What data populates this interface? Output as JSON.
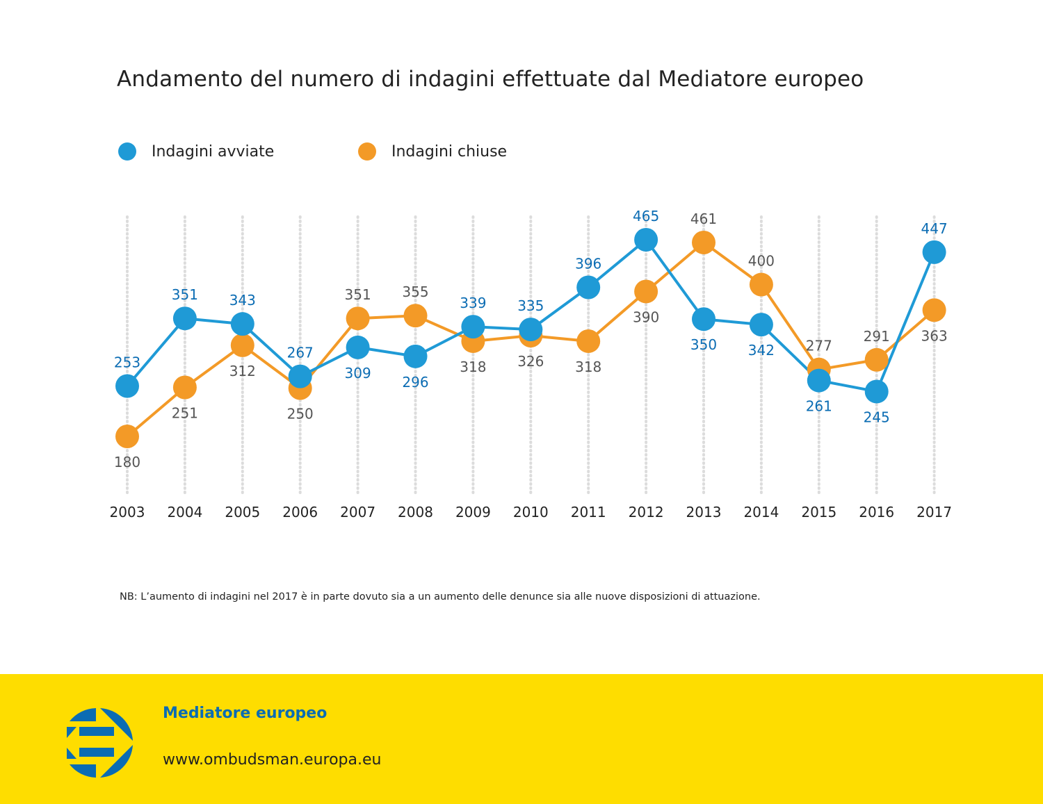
{
  "chart_data": {
    "type": "line",
    "title": "Andamento del numero di indagini effettuate dal Mediatore europeo",
    "xlabel": "",
    "ylabel": "",
    "categories": [
      "2003",
      "2004",
      "2005",
      "2006",
      "2007",
      "2008",
      "2009",
      "2010",
      "2011",
      "2012",
      "2013",
      "2014",
      "2015",
      "2016",
      "2017"
    ],
    "series": [
      {
        "name": "Indagini avviate",
        "color": "#1f9ad6",
        "label_color": "#0b6cb3",
        "values": [
          253,
          351,
          343,
          267,
          309,
          296,
          339,
          335,
          396,
          465,
          350,
          342,
          261,
          245,
          447
        ],
        "label_pos": [
          "above",
          "above",
          "above",
          "above",
          "below",
          "below",
          "above",
          "above",
          "above",
          "above",
          "below",
          "below",
          "below",
          "below",
          "above"
        ]
      },
      {
        "name": "Indagini chiuse",
        "color": "#f39a27",
        "label_color": "#555555",
        "values": [
          180,
          251,
          312,
          250,
          351,
          355,
          318,
          326,
          318,
          390,
          461,
          400,
          277,
          291,
          363
        ],
        "label_pos": [
          "below",
          "below",
          "below",
          "below",
          "above",
          "above",
          "below",
          "below",
          "below",
          "below",
          "above",
          "above",
          "above",
          "above",
          "below"
        ]
      }
    ],
    "ylim": [
      180,
      465
    ],
    "grid": "vertical dotted",
    "legend": "top-left"
  },
  "note": "NB: L’aumento di indagini nel 2017 è in parte dovuto sia a un aumento delle denunce sia alle nuove disposizioni di attuazione.",
  "footer": {
    "org": "Mediatore europeo",
    "url": "www.ombudsman.europa.eu",
    "bg_color": "#fedd00",
    "logo_color": "#0b6cb3"
  }
}
